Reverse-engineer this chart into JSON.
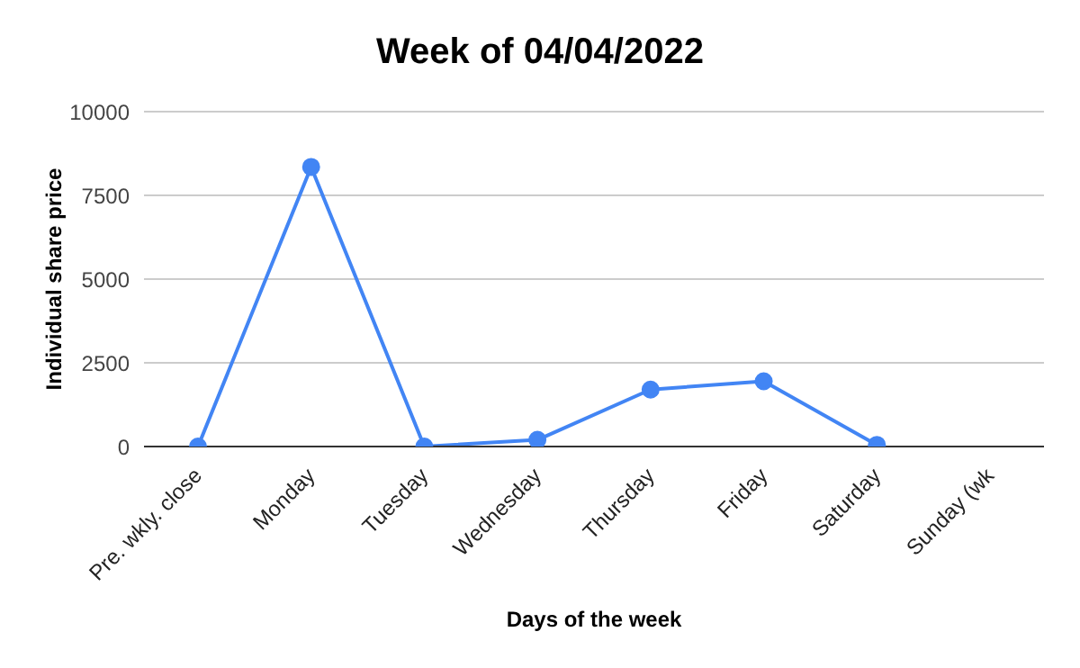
{
  "chart_data": {
    "type": "line",
    "title": "Week of 04/04/2022",
    "xlabel": "Days of the week",
    "ylabel": "Individual share price",
    "categories": [
      "Pre. wkly. close",
      "Monday",
      "Tuesday",
      "Wednesday",
      "Thursday",
      "Friday",
      "Saturday",
      "Sunday (wk"
    ],
    "series": [
      {
        "color": "#4285f4",
        "values": [
          0,
          8350,
          0,
          200,
          1700,
          1950,
          50,
          null
        ]
      }
    ],
    "ylim": [
      0,
      10000
    ],
    "yticks": [
      0,
      2500,
      5000,
      7500,
      10000
    ],
    "grid": "y",
    "marker": "circle",
    "line_style": "solid",
    "legend": false
  }
}
